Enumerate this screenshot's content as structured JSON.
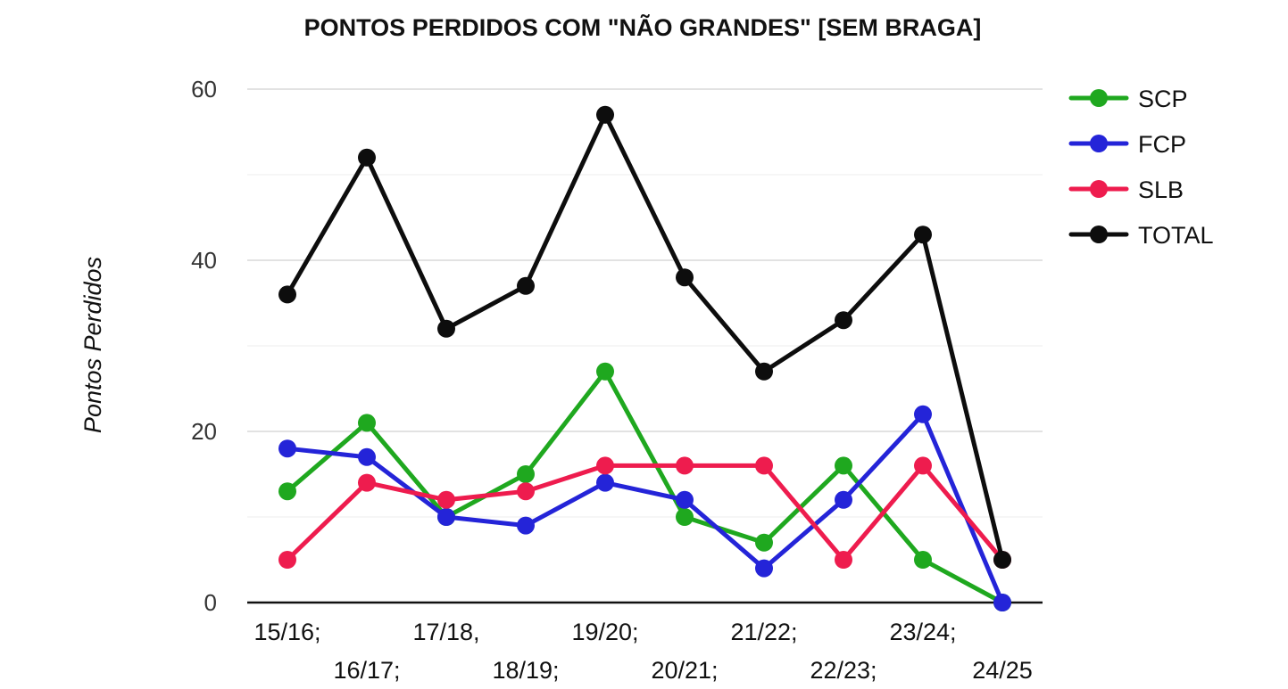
{
  "chart_data": {
    "type": "line",
    "title": "PONTOS PERDIDOS COM \"NÃO GRANDES\"  [SEM BRAGA]",
    "xlabel": "",
    "ylabel": "Pontos Perdidos",
    "categories": [
      "15/16;",
      "16/17;",
      "17/18,",
      "18/19;",
      "19/20;",
      "20/21;",
      "21/22;",
      "22/23;",
      "23/24;",
      "24/25"
    ],
    "ylim": [
      0,
      60
    ],
    "yticks": [
      0,
      20,
      40,
      60
    ],
    "grid": true,
    "legend_position": "right",
    "series": [
      {
        "name": "SCP",
        "color": "#1fa81f",
        "values": [
          13,
          21,
          10,
          15,
          27,
          10,
          7,
          16,
          5,
          0
        ]
      },
      {
        "name": "FCP",
        "color": "#2424d8",
        "values": [
          18,
          17,
          10,
          9,
          14,
          12,
          4,
          12,
          22,
          0
        ]
      },
      {
        "name": "SLB",
        "color": "#ee1c4e",
        "values": [
          5,
          14,
          12,
          13,
          16,
          16,
          16,
          5,
          16,
          5
        ]
      },
      {
        "name": "TOTAL",
        "color": "#0d0d0d",
        "values": [
          36,
          52,
          32,
          37,
          57,
          38,
          27,
          33,
          43,
          5
        ]
      }
    ]
  }
}
